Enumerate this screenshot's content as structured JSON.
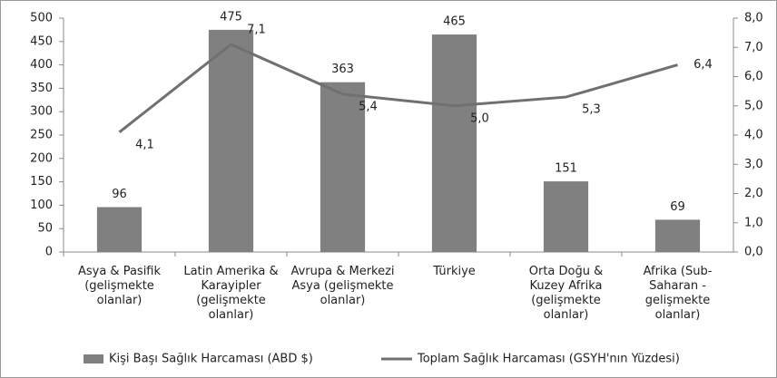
{
  "chart_data": {
    "type": "combo",
    "categories": [
      "Asya & Pasifik (gelişmekte olanlar)",
      "Latin Amerika & Karayipler (gelişmekte olanlar)",
      "Avrupa & Merkezi Asya (gelişmekte olanlar)",
      "Türkiye",
      "Orta Doğu & Kuzey Afrika (gelişmekte olanlar)",
      "Afrika (Sub-Saharan - gelişmekte olanlar)"
    ],
    "series": [
      {
        "name": "Kişi Başı Sağlık Harcaması (ABD $)",
        "type": "bar",
        "color": "#808080",
        "values": [
          96,
          475,
          363,
          465,
          151,
          69
        ]
      },
      {
        "name": "Toplam Sağlık Harcaması (GSYH'nın Yüzdesi)",
        "type": "line",
        "axis": "y2",
        "color": "#707070",
        "values": [
          4.1,
          7.1,
          5.4,
          5.0,
          5.3,
          6.4
        ],
        "value_labels": [
          "4,1",
          "7,1",
          "5,4",
          "5,0",
          "5,3",
          "6,4"
        ]
      }
    ],
    "ylim": [
      0,
      500
    ],
    "yticks": [
      0,
      50,
      100,
      150,
      200,
      250,
      300,
      350,
      400,
      450,
      500
    ],
    "y2lim": [
      0,
      8
    ],
    "y2ticks": [
      {
        "value": 0,
        "label": "0,0"
      },
      {
        "value": 1,
        "label": "1,0"
      },
      {
        "value": 2,
        "label": "2,0"
      },
      {
        "value": 3,
        "label": "3,0"
      },
      {
        "value": 4,
        "label": "4,0"
      },
      {
        "value": 5,
        "label": "5,0"
      },
      {
        "value": 6,
        "label": "6,0"
      },
      {
        "value": 7,
        "label": "7,0"
      },
      {
        "value": 8,
        "label": "8,0"
      }
    ],
    "grid": false,
    "legend": "bottom"
  }
}
